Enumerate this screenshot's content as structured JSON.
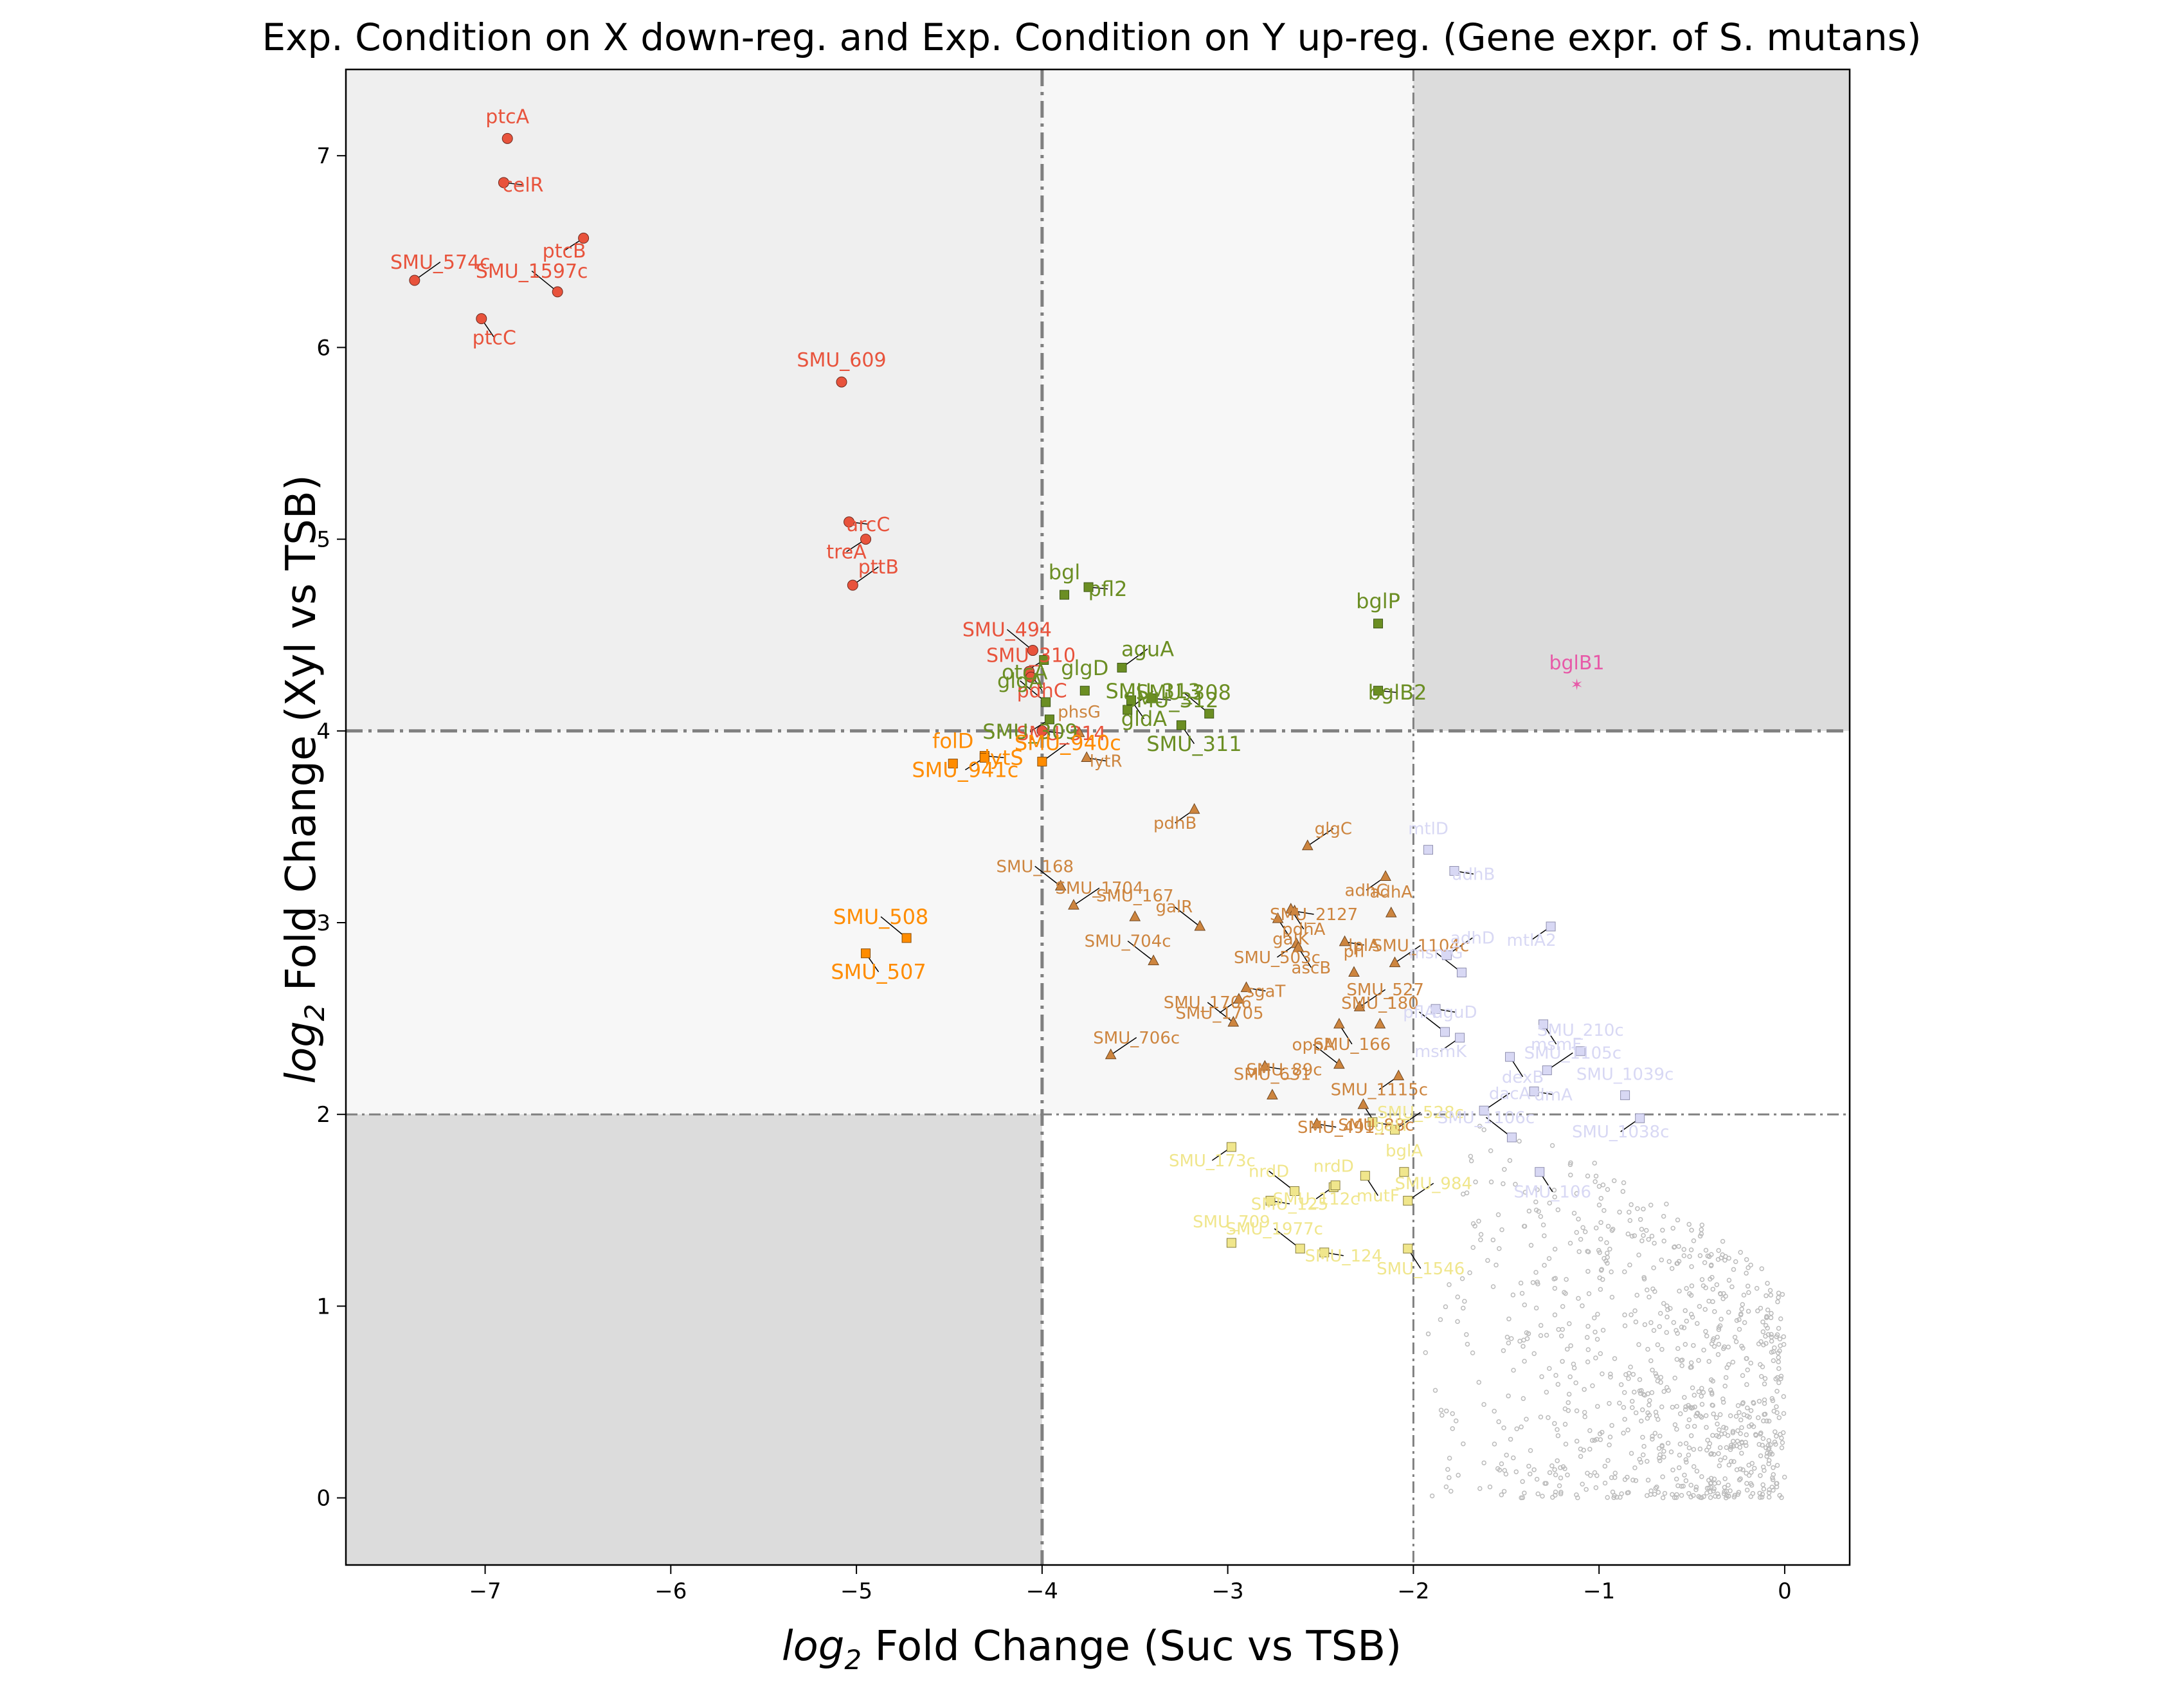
{
  "chart_data": {
    "type": "scatter",
    "title": "Exp. Condition on X down-reg. and Exp. Condition on Y up-reg. (Gene expr. of S. mutans)",
    "xlabel_prefix": "log",
    "xlabel_sub": "2",
    "xlabel_rest": " Fold Change (Suc vs TSB)",
    "ylabel_prefix": "log",
    "ylabel_sub": "2",
    "ylabel_rest": " Fold Change (Xyl vs TSB)",
    "xlim": [
      -7.75,
      0.35
    ],
    "ylim": [
      -0.35,
      7.45
    ],
    "xticks": [
      -7,
      -6,
      -5,
      -4,
      -3,
      -2,
      -1,
      0
    ],
    "yticks": [
      0,
      1,
      2,
      3,
      4,
      5,
      6,
      7
    ],
    "grid": false,
    "thresholds": {
      "x_strong": -4,
      "x_weak": -2,
      "y_strong": 4,
      "y_weak": 2
    },
    "colors": {
      "red": "#e8533c",
      "green": "#6b8e23",
      "orange": "#ff8c00",
      "brown": "#cd853f",
      "khaki": "#f0e68c",
      "lavender": "#d8d8f4",
      "pink": "#e75aa8",
      "grey": "#bbbbbb",
      "shade_dark": "#dcdcdc",
      "shade_mid": "#efefef",
      "shade_light": "#f7f7f7",
      "line": "#808080"
    },
    "series": [
      {
        "group": "red",
        "marker": "circle",
        "points": [
          {
            "label": "ptcA",
            "x": -6.88,
            "y": 7.09
          },
          {
            "label": "celR",
            "x": -6.9,
            "y": 6.86
          },
          {
            "label": "ptcB",
            "x": -6.47,
            "y": 6.57
          },
          {
            "label": "SMU_574c",
            "x": -7.38,
            "y": 6.35
          },
          {
            "label": "SMU_1597c",
            "x": -6.61,
            "y": 6.29
          },
          {
            "label": "ptcC",
            "x": -7.02,
            "y": 6.15
          },
          {
            "label": "SMU_609",
            "x": -5.08,
            "y": 5.82
          },
          {
            "label": "arcC",
            "x": -5.04,
            "y": 5.09
          },
          {
            "label": "treA",
            "x": -4.95,
            "y": 5.0
          },
          {
            "label": "pttB",
            "x": -5.02,
            "y": 4.76
          },
          {
            "label": "SMU_494",
            "x": -4.05,
            "y": 4.42
          },
          {
            "label": "pdhC",
            "x": -4.07,
            "y": 4.31
          },
          {
            "label": "SMU_310",
            "x": -4.06,
            "y": 4.28
          },
          {
            "label": "SMU_314",
            "x": -4.0,
            "y": 4.0
          }
        ]
      },
      {
        "group": "green",
        "marker": "square",
        "points": [
          {
            "label": "bgl",
            "x": -3.88,
            "y": 4.71
          },
          {
            "label": "pfl2",
            "x": -3.75,
            "y": 4.75
          },
          {
            "label": "otcA",
            "x": -3.99,
            "y": 4.37
          },
          {
            "label": "aguA",
            "x": -3.57,
            "y": 4.33
          },
          {
            "label": "glgA",
            "x": -3.98,
            "y": 4.15
          },
          {
            "label": "gldA",
            "x": -3.52,
            "y": 4.16
          },
          {
            "label": "glgD",
            "x": -3.77,
            "y": 4.21
          },
          {
            "label": "SMU_312",
            "x": -3.41,
            "y": 4.17
          },
          {
            "label": "SMU_309",
            "x": -3.96,
            "y": 4.06
          },
          {
            "label": "SMU_313",
            "x": -3.54,
            "y": 4.11
          },
          {
            "label": "SMU_308",
            "x": -3.1,
            "y": 4.09
          },
          {
            "label": "SMU_311",
            "x": -3.25,
            "y": 4.03
          },
          {
            "label": "bglP",
            "x": -2.19,
            "y": 4.56
          },
          {
            "label": "bglB2",
            "x": -2.19,
            "y": 4.21
          }
        ]
      },
      {
        "group": "orange",
        "marker": "square",
        "points": [
          {
            "label": "folD",
            "x": -4.48,
            "y": 3.83
          },
          {
            "label": "lytS",
            "x": -4.31,
            "y": 3.87
          },
          {
            "label": "SMU_941c",
            "x": -4.31,
            "y": 3.86
          },
          {
            "label": "SMU_940c",
            "x": -4.0,
            "y": 3.84
          },
          {
            "label": "SMU_508",
            "x": -4.73,
            "y": 2.92
          },
          {
            "label": "SMU_507",
            "x": -4.95,
            "y": 2.84
          }
        ]
      },
      {
        "group": "brown",
        "marker": "triangle",
        "points": [
          {
            "label": "phsG",
            "x": -3.8,
            "y": 3.99
          },
          {
            "label": "lytR",
            "x": -3.76,
            "y": 3.86
          },
          {
            "label": "pdhB",
            "x": -3.18,
            "y": 3.59
          },
          {
            "label": "glgC",
            "x": -2.57,
            "y": 3.4
          },
          {
            "label": "SMU_168",
            "x": -3.9,
            "y": 3.19
          },
          {
            "label": "pdhA",
            "x": -2.66,
            "y": 3.07
          },
          {
            "label": "SMU_167",
            "x": -3.5,
            "y": 3.03
          },
          {
            "label": "SMU_2127",
            "x": -2.64,
            "y": 3.06
          },
          {
            "label": "adhC",
            "x": -2.15,
            "y": 3.24
          },
          {
            "label": "SMU_1704",
            "x": -3.83,
            "y": 3.09
          },
          {
            "label": "galR",
            "x": -3.15,
            "y": 2.98
          },
          {
            "label": "galK",
            "x": -2.73,
            "y": 3.02
          },
          {
            "label": "adhA",
            "x": -2.12,
            "y": 3.05
          },
          {
            "label": "lplA",
            "x": -2.37,
            "y": 2.9
          },
          {
            "label": "SMU_503c",
            "x": -2.63,
            "y": 2.89
          },
          {
            "label": "SMU_1104c",
            "x": -2.1,
            "y": 2.79
          },
          {
            "label": "SMU_704c",
            "x": -3.4,
            "y": 2.8
          },
          {
            "label": "ascB",
            "x": -2.62,
            "y": 2.87
          },
          {
            "label": "pfl",
            "x": -2.32,
            "y": 2.74
          },
          {
            "label": "sgaT",
            "x": -2.9,
            "y": 2.66
          },
          {
            "label": "SMU_1705",
            "x": -2.94,
            "y": 2.6
          },
          {
            "label": "SMU_527",
            "x": -2.29,
            "y": 2.56
          },
          {
            "label": "SMU_1706",
            "x": -2.97,
            "y": 2.48
          },
          {
            "label": "SMU_166",
            "x": -2.4,
            "y": 2.47
          },
          {
            "label": "SMU_180",
            "x": -2.18,
            "y": 2.47
          },
          {
            "label": "SMU_89c",
            "x": -2.8,
            "y": 2.25
          },
          {
            "label": "SMU_1115c",
            "x": -2.08,
            "y": 2.2
          },
          {
            "label": "SMU_706c",
            "x": -3.63,
            "y": 2.31
          },
          {
            "label": "oppA",
            "x": -2.4,
            "y": 2.26
          },
          {
            "label": "SMU_88c",
            "x": -2.27,
            "y": 2.05
          },
          {
            "label": "SMU_631",
            "x": -2.76,
            "y": 2.1
          },
          {
            "label": "SMU_491",
            "x": -2.52,
            "y": 1.95
          }
        ]
      },
      {
        "group": "khaki",
        "marker": "square",
        "points": [
          {
            "label": "nrdD",
            "x": -2.43,
            "y": 1.62
          },
          {
            "label": "galT",
            "x": -2.22,
            "y": 1.96
          },
          {
            "label": "SMU_173c",
            "x": -2.98,
            "y": 1.83
          },
          {
            "label": "SMU_528c",
            "x": -2.1,
            "y": 1.92
          },
          {
            "label": "nrdD",
            "x": -2.64,
            "y": 1.6
          },
          {
            "label": "mutF",
            "x": -2.26,
            "y": 1.68
          },
          {
            "label": "bglA",
            "x": -2.05,
            "y": 1.7
          },
          {
            "label": "SMU_125",
            "x": -2.77,
            "y": 1.55
          },
          {
            "label": "SMU_112c",
            "x": -2.42,
            "y": 1.63
          },
          {
            "label": "SMU_984",
            "x": -2.03,
            "y": 1.55
          },
          {
            "label": "SMU_1977c",
            "x": -2.61,
            "y": 1.3
          },
          {
            "label": "SMU_1546",
            "x": -2.03,
            "y": 1.3
          },
          {
            "label": "SMU_709",
            "x": -2.98,
            "y": 1.33
          },
          {
            "label": "SMU_124",
            "x": -2.48,
            "y": 1.28
          }
        ]
      },
      {
        "group": "lavender",
        "marker": "square",
        "points": [
          {
            "label": "mtlD",
            "x": -1.92,
            "y": 3.38
          },
          {
            "label": "adhB",
            "x": -1.78,
            "y": 3.27
          },
          {
            "label": "mtlA2",
            "x": -1.26,
            "y": 2.98
          },
          {
            "label": "adhD",
            "x": -1.82,
            "y": 2.83
          },
          {
            "label": "msmG",
            "x": -1.74,
            "y": 2.74
          },
          {
            "label": "msmF",
            "x": -1.3,
            "y": 2.47
          },
          {
            "label": "SMU_210c",
            "x": -1.1,
            "y": 2.33
          },
          {
            "label": "aguD",
            "x": -1.88,
            "y": 2.55
          },
          {
            "label": "msmK",
            "x": -1.75,
            "y": 2.4
          },
          {
            "label": "SMU_1105c",
            "x": -1.28,
            "y": 2.23
          },
          {
            "label": "pflA",
            "x": -1.83,
            "y": 2.43
          },
          {
            "label": "dexB",
            "x": -1.48,
            "y": 2.3
          },
          {
            "label": "SMU_1039c",
            "x": -0.86,
            "y": 2.1
          },
          {
            "label": "dmA",
            "x": -1.35,
            "y": 2.12
          },
          {
            "label": "SMU_1038c",
            "x": -0.78,
            "y": 1.98
          },
          {
            "label": "dacA",
            "x": -1.62,
            "y": 2.02
          },
          {
            "label": "SMU_1106c",
            "x": -1.47,
            "y": 1.88
          },
          {
            "label": "SMU_106",
            "x": -1.32,
            "y": 1.7
          }
        ]
      },
      {
        "group": "pink",
        "marker": "star",
        "points": [
          {
            "label": "bglB1",
            "x": -1.12,
            "y": 4.24
          }
        ]
      }
    ],
    "background_scatter": {
      "group": "grey",
      "marker": "dot",
      "note_count": 900,
      "x_range": [
        -2.0,
        0.0
      ],
      "y_range": [
        0.0,
        2.0
      ]
    }
  }
}
